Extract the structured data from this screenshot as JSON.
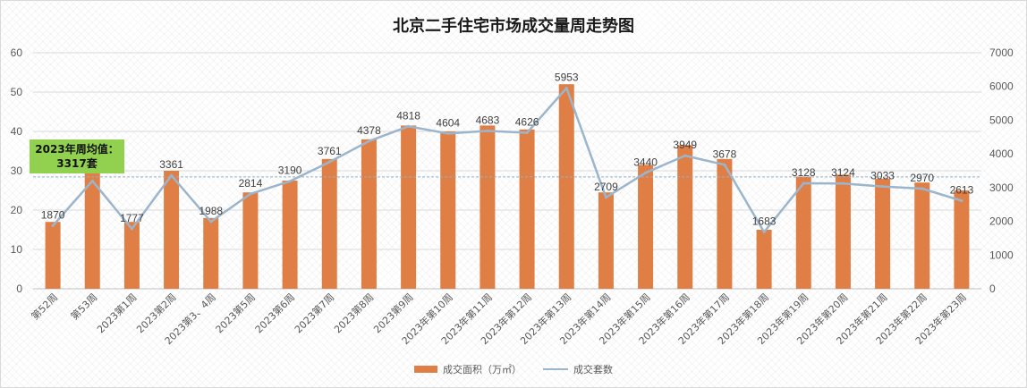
{
  "chart_data": {
    "type": "bar",
    "title": "北京二手住宅市场成交量周走势图",
    "categories": [
      "第52周",
      "第53周",
      "2023第1周",
      "2023第2周",
      "2023第3、4周",
      "2023第5周",
      "2023第6周",
      "2023第7周",
      "2023第8周",
      "2023第9周",
      "2023年第10周",
      "2023年第11周",
      "2023年第12周",
      "2023年第13周",
      "2023年第14周",
      "2023年第15周",
      "2023年第16周",
      "2023年第17周",
      "2023年第18周",
      "2023年第19周",
      "2023年第20周",
      "2023年第21周",
      "2023年第22周",
      "2023年第23周"
    ],
    "series": [
      {
        "name": "成交面积（万㎡）",
        "type": "bar",
        "axis": "left",
        "color": "#e07f45",
        "values": [
          17,
          29.5,
          17,
          30,
          18,
          24.5,
          27.5,
          33,
          38,
          41.5,
          40,
          41.5,
          40.5,
          52,
          24.5,
          31.5,
          36.5,
          33,
          15,
          28.5,
          29,
          28,
          27,
          25
        ]
      },
      {
        "name": "成交套数",
        "type": "line",
        "axis": "right",
        "color": "#9ab5cc",
        "values": [
          1870,
          3200,
          1777,
          3361,
          1988,
          2814,
          3190,
          3761,
          4378,
          4818,
          4604,
          4683,
          4626,
          5953,
          2709,
          3440,
          3949,
          3678,
          1683,
          3128,
          3124,
          3033,
          2970,
          2613
        ],
        "data_labels": [
          "1870",
          "",
          "1777",
          "3361",
          "1988",
          "2814",
          "3190",
          "3761",
          "4378",
          "4818",
          "4604",
          "4683",
          "4626",
          "5953",
          "2709",
          "3440",
          "3949",
          "3678",
          "1683",
          "3128",
          "3124",
          "3033",
          "2970",
          "2613"
        ]
      }
    ],
    "y_left": {
      "ylim": [
        0,
        60
      ],
      "ticks": [
        "0",
        "10",
        "20",
        "30",
        "40",
        "50",
        "60"
      ]
    },
    "y_right": {
      "ylim": [
        0,
        7000
      ],
      "ticks": [
        "0",
        "1000",
        "2000",
        "3000",
        "4000",
        "5000",
        "6000",
        "7000"
      ]
    },
    "average": {
      "value": 3317,
      "axis": "right",
      "label_line1": "2023年周均值：",
      "label_line2": "3317套"
    },
    "legend_position": "bottom",
    "grid": true
  }
}
